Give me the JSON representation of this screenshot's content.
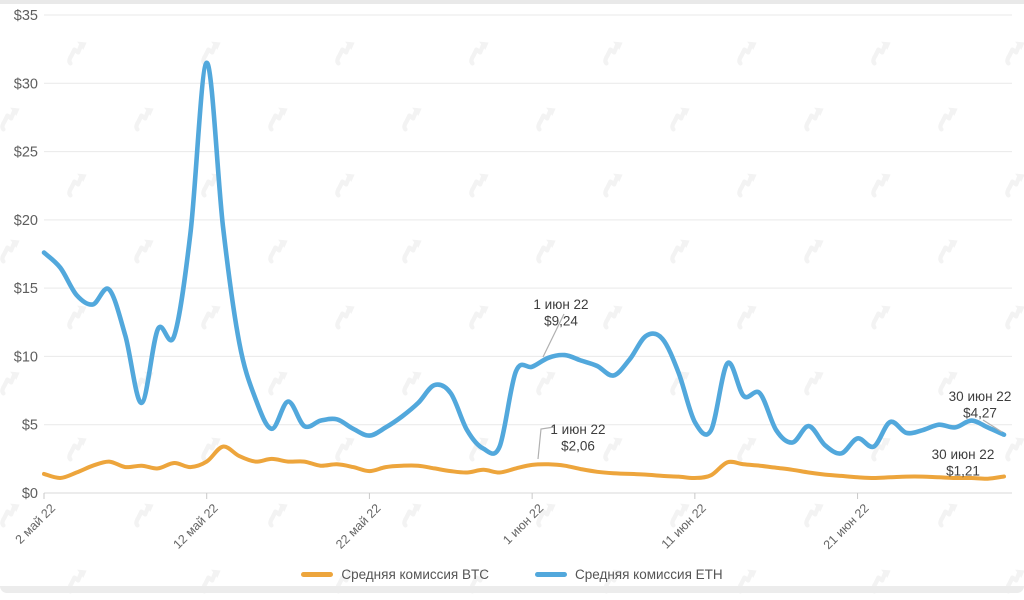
{
  "page": {
    "top_band_color": "#e9e9e9",
    "bottom_band_color": "#ececec",
    "background": "#ffffff"
  },
  "watermark": {
    "icon": "forklog-logo",
    "color": "#f3f3f3"
  },
  "chart_data": {
    "type": "line",
    "title": "",
    "xlabel": "",
    "ylabel": "",
    "grid": "horizontal",
    "legend_position": "bottom",
    "ylim": [
      0,
      35
    ],
    "y_ticks": [
      0,
      5,
      10,
      15,
      20,
      25,
      30,
      35
    ],
    "y_tick_labels": [
      "$0",
      "$5",
      "$10",
      "$15",
      "$20",
      "$25",
      "$30",
      "$35"
    ],
    "x_range_days": [
      0,
      59
    ],
    "x_tick_days": [
      0,
      10,
      20,
      30,
      40,
      50
    ],
    "x_tick_labels": [
      "2 май 22",
      "12 май 22",
      "22 май 22",
      "1 июн 22",
      "11 июн 22",
      "21 июн 22"
    ],
    "colors": {
      "grid_line": "#e9e9e9",
      "axis_line": "#d8d8d8",
      "tick_mark": "#c9c9c9",
      "tick_text": "#666666",
      "annotation_text": "#3d3d3d",
      "annotation_pointer": "#b0b0b0"
    },
    "series": [
      {
        "name": "Средняя комиссия BTC",
        "color": "#EDA53C",
        "stroke_width": 4.0,
        "values": [
          1.4,
          1.1,
          1.5,
          2.0,
          2.3,
          1.9,
          2.0,
          1.8,
          2.2,
          1.9,
          2.3,
          3.4,
          2.7,
          2.3,
          2.5,
          2.3,
          2.3,
          2.0,
          2.1,
          1.9,
          1.6,
          1.9,
          2.0,
          2.0,
          1.8,
          1.6,
          1.5,
          1.7,
          1.5,
          1.8,
          2.06,
          2.1,
          2.0,
          1.75,
          1.55,
          1.45,
          1.4,
          1.35,
          1.25,
          1.2,
          1.1,
          1.3,
          2.25,
          2.1,
          2.0,
          1.85,
          1.7,
          1.5,
          1.35,
          1.25,
          1.15,
          1.1,
          1.15,
          1.2,
          1.2,
          1.15,
          1.1,
          1.1,
          1.05,
          1.21
        ]
      },
      {
        "name": "Средняя комиссия ETH",
        "color": "#52A8DC",
        "stroke_width": 4.6,
        "values": [
          17.6,
          16.5,
          14.5,
          13.8,
          14.9,
          11.5,
          6.6,
          12.0,
          11.5,
          19.0,
          31.5,
          19.5,
          11.0,
          6.9,
          4.7,
          6.7,
          4.9,
          5.3,
          5.4,
          4.7,
          4.2,
          4.8,
          5.6,
          6.6,
          7.9,
          7.3,
          4.6,
          3.25,
          3.4,
          8.9,
          9.24,
          9.9,
          10.1,
          9.7,
          9.3,
          8.6,
          9.8,
          11.5,
          11.3,
          8.8,
          5.2,
          4.6,
          9.5,
          7.1,
          7.3,
          4.6,
          3.7,
          4.9,
          3.5,
          2.9,
          4.0,
          3.4,
          5.2,
          4.4,
          4.6,
          5.0,
          4.8,
          5.3,
          4.8,
          4.27
        ]
      }
    ],
    "annotations": [
      {
        "date": "1 июн 22",
        "value": "$9,24",
        "series": "ETH",
        "text_x": 561,
        "baseline_y": 309,
        "pointer": [
          [
            564,
            314
          ],
          [
            543,
            357
          ]
        ]
      },
      {
        "date": "1 июн 22",
        "value": "$2,06",
        "series": "BTC",
        "text_x": 578,
        "baseline_y": 434,
        "pointer": [
          [
            554,
            427
          ],
          [
            541,
            429
          ],
          [
            538,
            459
          ]
        ]
      },
      {
        "date": "30 июн 22",
        "value": "$4,27",
        "series": "ETH",
        "text_x": 980,
        "baseline_y": 401,
        "pointer": [
          [
            983,
            420
          ],
          [
            1002,
            432
          ]
        ]
      },
      {
        "date": "30 июн 22",
        "value": "$1,21",
        "series": "BTC",
        "text_x": 963,
        "baseline_y": 459,
        "pointer": []
      }
    ]
  }
}
